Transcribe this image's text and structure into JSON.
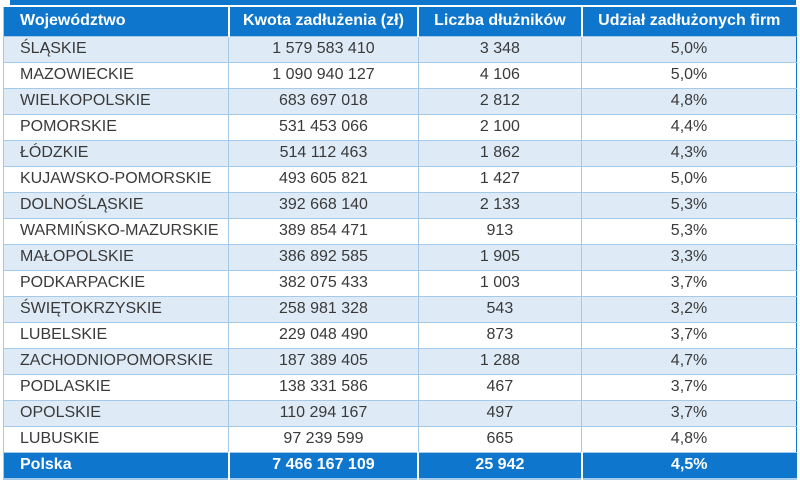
{
  "chart_data": {
    "type": "table",
    "columns": [
      "Województwo",
      "Kwota zadłużenia (zł)",
      "Liczba dłużników",
      "Udział zadłużonych firm"
    ],
    "rows": [
      [
        "ŚLĄSKIE",
        "1 579 583 410",
        "3 348",
        "5,0%"
      ],
      [
        "MAZOWIECKIE",
        "1 090 940 127",
        "4 106",
        "5,0%"
      ],
      [
        "WIELKOPOLSKIE",
        "683 697 018",
        "2 812",
        "4,8%"
      ],
      [
        "POMORSKIE",
        "531 453 066",
        "2 100",
        "4,4%"
      ],
      [
        "ŁÓDZKIE",
        "514 112 463",
        "1 862",
        "4,3%"
      ],
      [
        "KUJAWSKO-POMORSKIE",
        "493 605 821",
        "1 427",
        "5,0%"
      ],
      [
        "DOLNOŚLĄSKIE",
        "392 668 140",
        "2 133",
        "5,3%"
      ],
      [
        "WARMIŃSKO-MAZURSKIE",
        "389 854 471",
        "913",
        "5,3%"
      ],
      [
        "MAŁOPOLSKIE",
        "386 892 585",
        "1 905",
        "3,3%"
      ],
      [
        "PODKARPACKIE",
        "382 075 433",
        "1 003",
        "3,7%"
      ],
      [
        "ŚWIĘTOKRZYSKIE",
        "258 981 328",
        "543",
        "3,2%"
      ],
      [
        "LUBELSKIE",
        "229 048 490",
        "873",
        "3,7%"
      ],
      [
        "ZACHODNIOPOMORSKIE",
        "187 389 405",
        "1 288",
        "4,7%"
      ],
      [
        "PODLASKIE",
        "138 331 586",
        "467",
        "3,7%"
      ],
      [
        "OPOLSKIE",
        "110 294 167",
        "497",
        "3,7%"
      ],
      [
        "LUBUSKIE",
        "97 239 599",
        "665",
        "4,8%"
      ]
    ],
    "footer": [
      "Polska",
      "7 466 167 109",
      "25 942",
      "4,5%"
    ],
    "layout_hints": {
      "zebra_striping": true,
      "first_column_align": "left",
      "other_columns_align": "center"
    }
  },
  "colors": {
    "header_blue": "#0E76CC",
    "row_alt_blue": "#DEEBF6",
    "row_border_blue": "#A5C9E9",
    "data_text": "#3A3A3A",
    "header_text": "#FFFFFF"
  }
}
